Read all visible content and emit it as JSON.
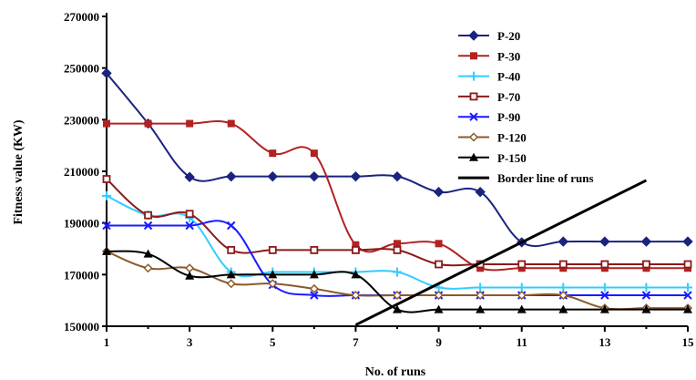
{
  "chart_data": {
    "type": "line",
    "xlabel": "No. of runs",
    "ylabel": "Fitness value (KW)",
    "xlim": [
      1,
      15
    ],
    "ylim": [
      150000,
      270000
    ],
    "x_ticks": [
      1,
      3,
      5,
      7,
      9,
      11,
      13,
      15
    ],
    "y_ticks": [
      150000,
      170000,
      190000,
      210000,
      230000,
      250000,
      270000
    ],
    "x_tick_labels": [
      "1",
      "3",
      "5",
      "7",
      "9",
      "11",
      "13",
      "15"
    ],
    "y_tick_labels": [
      "150000",
      "170000",
      "190000",
      "210000",
      "230000",
      "250000",
      "270000"
    ],
    "grid": false,
    "legend_position": "top-right",
    "x": [
      1,
      2,
      3,
      4,
      5,
      6,
      7,
      8,
      9,
      10,
      11,
      12,
      13,
      14,
      15
    ],
    "series": [
      {
        "name": "P-20",
        "color": "#1a237e",
        "marker": "diamond-filled",
        "values": [
          248000,
          228500,
          207800,
          208000,
          208000,
          208000,
          208000,
          208000,
          202000,
          202000,
          182500,
          182800,
          182800,
          182800,
          182800
        ]
      },
      {
        "name": "P-30",
        "color": "#b22222",
        "marker": "square-filled",
        "values": [
          228500,
          228500,
          228500,
          228500,
          217000,
          217000,
          181500,
          182000,
          182000,
          172500,
          172500,
          172500,
          172500,
          172500,
          172500
        ]
      },
      {
        "name": "P-40",
        "color": "#33ccff",
        "marker": "plus",
        "values": [
          200500,
          193000,
          192000,
          171000,
          171000,
          171000,
          171000,
          171000,
          165000,
          165000,
          165000,
          165000,
          165000,
          165000,
          165000
        ]
      },
      {
        "name": "P-70",
        "color": "#8b1a1a",
        "marker": "square-open",
        "values": [
          207000,
          193000,
          193500,
          179500,
          179500,
          179500,
          179500,
          179500,
          174000,
          174000,
          174000,
          174000,
          174000,
          174000,
          174000
        ]
      },
      {
        "name": "P-90",
        "color": "#1a1aff",
        "marker": "cross",
        "values": [
          189000,
          189000,
          189000,
          189000,
          166000,
          162000,
          162000,
          162000,
          162000,
          162000,
          162000,
          162000,
          162000,
          162000,
          162000
        ]
      },
      {
        "name": "P-120",
        "color": "#8b5a2b",
        "marker": "diamond-open",
        "values": [
          179000,
          172500,
          172500,
          166500,
          166500,
          164500,
          162000,
          162000,
          162000,
          162000,
          162000,
          162000,
          157000,
          157000,
          157000
        ]
      },
      {
        "name": "P-150",
        "color": "#000000",
        "marker": "triangle-filled",
        "values": [
          179000,
          178000,
          169500,
          170000,
          170000,
          170000,
          170000,
          156500,
          156500,
          156500,
          156500,
          156500,
          156500,
          156500,
          156500
        ]
      }
    ],
    "border_line": {
      "name": "Border line of runs",
      "color": "#000000",
      "x": [
        7,
        14
      ],
      "values": [
        150500,
        206500
      ]
    }
  }
}
